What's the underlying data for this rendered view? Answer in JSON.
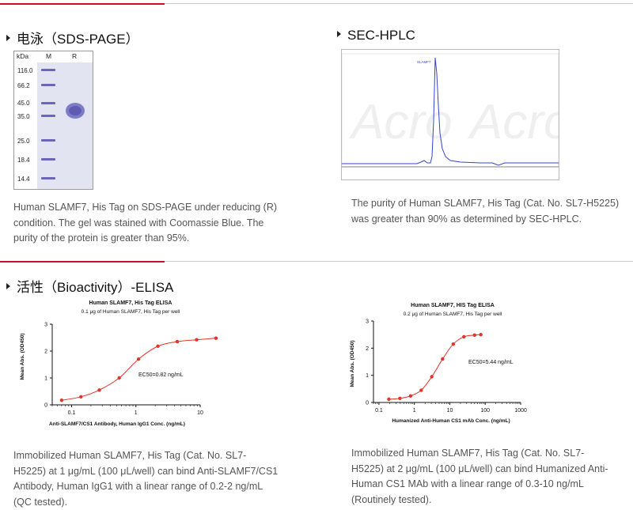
{
  "sections": {
    "sds_page": {
      "title": "电泳（SDS-PAGE）",
      "caption": "Human SLAMF7, His Tag on SDS-PAGE under reducing (R) condition. The gel was stained with Coomassie Blue. The purity of the protein is greater than 95%.",
      "gel": {
        "unit_label": "kDa",
        "lane_labels": [
          "M",
          "R"
        ],
        "markers": [
          "116.0",
          "66.2",
          "45.0",
          "35.0",
          "25.0",
          "18.4",
          "14.4"
        ]
      }
    },
    "sec_hplc": {
      "title": "SEC-HPLC",
      "caption": "The purity of Human SLAMF7, His Tag (Cat. No. SL7-H5225) was greater than 90% as determined by SEC-HPLC.",
      "peak_label": "SLAMF7",
      "watermark": "Acro"
    },
    "elisa": {
      "title": "活性（Bioactivity）-ELISA",
      "left_caption": "Immobilized Human SLAMF7, His Tag (Cat. No. SL7-H5225) at 1 μg/mL (100 μL/well) can bind Anti-SLAMF7/CS1 Antibody, Human IgG1 with a linear range of 0.2-2 ng/mL (QC tested).",
      "right_caption": "Immobilized Human SLAMF7, His Tag (Cat. No. SL7-H5225) at 2 μg/mL (100 μL/well) can bind Humanized Anti-Human CS1 MAb with a linear range of 0.3-10 ng/mL (Routinely tested)."
    }
  },
  "chart_data": [
    {
      "type": "line",
      "title": "Human SLAMF7, His Tag ELISA",
      "subtitle": "0.1 μg of Human SLAMF7, His Tag per well",
      "xlabel": "Anti-SLAMF7/CS1 Antibody, Human IgG1 Conc. (ng/mL)",
      "ylabel": "Mean Abs. (OD450)",
      "x_scale": "log",
      "xlim": [
        0.05,
        10
      ],
      "ylim": [
        0,
        3
      ],
      "xticks": [
        "0.1",
        "1",
        "10"
      ],
      "yticks": [
        "0",
        "1",
        "2",
        "3"
      ],
      "annotation": "EC50=0.82 ng/mL",
      "x": [
        0.07,
        0.14,
        0.27,
        0.55,
        1.1,
        2.2,
        4.4,
        8.8,
        17.6
      ],
      "y": [
        0.17,
        0.3,
        0.55,
        1.0,
        1.7,
        2.18,
        2.35,
        2.42,
        2.48
      ]
    },
    {
      "type": "line",
      "title": "Human SLAMF7, HIS Tag ELISA",
      "subtitle": "0.2 μg of Human SLAMF7, His Tag per well",
      "xlabel": "Humanized Anti-Human CS1 mAb Conc. (ng/mL)",
      "ylabel": "Mean Abs. (OD450)",
      "x_scale": "log",
      "xlim": [
        0.07,
        1000
      ],
      "ylim": [
        0,
        3
      ],
      "xticks": [
        "0.1",
        "1",
        "10",
        "100",
        "1000"
      ],
      "yticks": [
        "0",
        "1",
        "2",
        "3"
      ],
      "annotation": "EC50=5.44 ng/mL",
      "x": [
        0.19,
        0.39,
        0.78,
        1.56,
        3.1,
        6.25,
        12.5,
        25,
        50,
        75
      ],
      "y": [
        0.12,
        0.15,
        0.24,
        0.45,
        0.95,
        1.6,
        2.15,
        2.42,
        2.48,
        2.5
      ]
    }
  ]
}
